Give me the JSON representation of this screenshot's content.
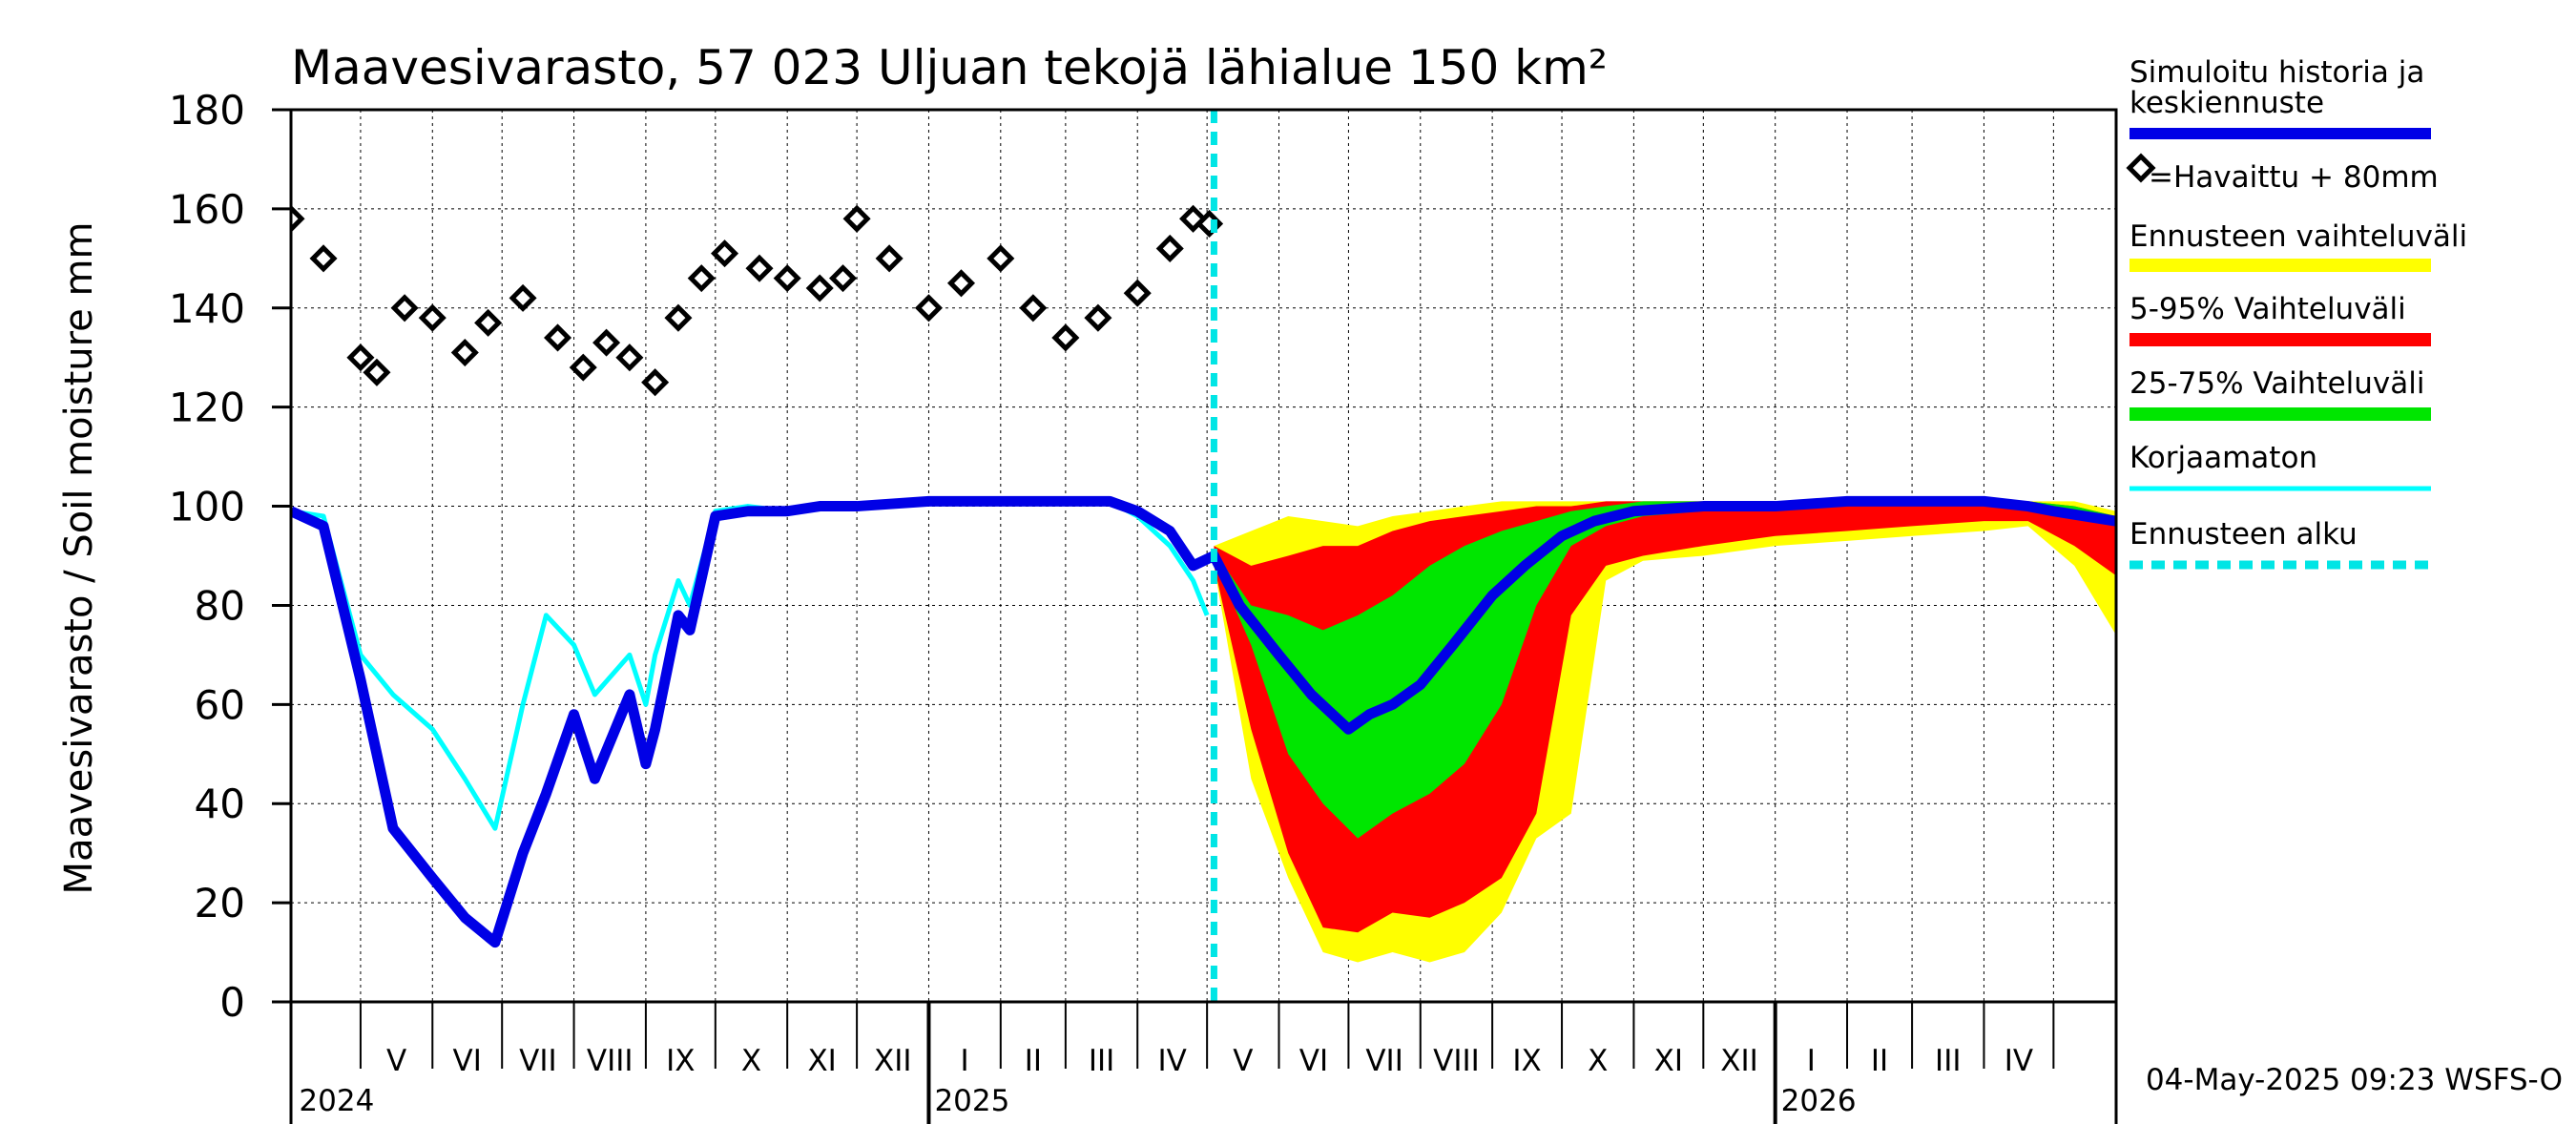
{
  "chart_data": {
    "type": "line",
    "title": "Maavesivarasto, 57 023 Uljuan tekojä lähialue 150 km²",
    "ylabel": "Maavesivarasto / Soil moisture   mm",
    "ylim": [
      0,
      180
    ],
    "yticks": [
      "0",
      "20",
      "40",
      "60",
      "80",
      "100",
      "120",
      "140",
      "160",
      "180"
    ],
    "xlim": [
      "2024-04-01",
      "2026-05-28"
    ],
    "grid": true,
    "months": [
      "V",
      "VI",
      "VII",
      "VIII",
      "IX",
      "X",
      "XI",
      "XII",
      "I",
      "II",
      "III",
      "IV",
      "V",
      "VI",
      "VII",
      "VIII",
      "IX",
      "X",
      "XI",
      "XII",
      "I",
      "II",
      "III",
      "IV"
    ],
    "years": [
      "2024",
      "2025",
      "2026"
    ],
    "forecast_start": "2025-05-04",
    "legend_position": "right",
    "legend": [
      {
        "label": "Simuloitu historia ja keskiennuste",
        "color": "#0000e6"
      },
      {
        "label": "=Havaittu + 80mm",
        "color": "#000000"
      },
      {
        "label": "Ennusteen vaihteluväli",
        "color": "#ffff00"
      },
      {
        "label": "5-95% Vaihteluväli",
        "color": "#ff0000"
      },
      {
        "label": "25-75% Vaihteluväli",
        "color": "#00e600"
      },
      {
        "label": "Korjaamaton",
        "color": "#00ffff"
      },
      {
        "label": "Ennusteen alku",
        "color": "#00e5e5"
      }
    ],
    "series": [
      {
        "name": "Simuloitu historia ja keskiennuste",
        "x": [
          "2024-04-01",
          "2024-04-15",
          "2024-05-01",
          "2024-05-15",
          "2024-06-01",
          "2024-06-15",
          "2024-06-28",
          "2024-07-10",
          "2024-07-20",
          "2024-08-01",
          "2024-08-10",
          "2024-08-25",
          "2024-09-01",
          "2024-09-05",
          "2024-09-15",
          "2024-09-20",
          "2024-10-01",
          "2024-10-15",
          "2024-11-01",
          "2024-11-15",
          "2024-12-01",
          "2025-01-01",
          "2025-02-01",
          "2025-03-01",
          "2025-03-20",
          "2025-04-01",
          "2025-04-15",
          "2025-04-25",
          "2025-05-04",
          "2025-05-15",
          "2025-06-01",
          "2025-06-15",
          "2025-07-01",
          "2025-07-10",
          "2025-07-20",
          "2025-08-01",
          "2025-08-15",
          "2025-09-01",
          "2025-09-15",
          "2025-10-01",
          "2025-10-15",
          "2025-11-01",
          "2025-12-01",
          "2026-01-01",
          "2026-02-01",
          "2026-03-01",
          "2026-04-01",
          "2026-04-20",
          "2026-05-01",
          "2026-05-28"
        ],
        "y": [
          99,
          96,
          65,
          35,
          25,
          17,
          12,
          30,
          42,
          58,
          45,
          62,
          48,
          55,
          78,
          75,
          98,
          99,
          99,
          100,
          100,
          101,
          101,
          101,
          101,
          99,
          95,
          88,
          90,
          80,
          70,
          62,
          55,
          58,
          60,
          64,
          72,
          82,
          88,
          94,
          97,
          99,
          100,
          100,
          101,
          101,
          101,
          100,
          99,
          97
        ]
      },
      {
        "name": "Korjaamaton",
        "x": [
          "2024-04-01",
          "2024-04-15",
          "2024-05-01",
          "2024-05-15",
          "2024-06-01",
          "2024-06-15",
          "2024-06-28",
          "2024-07-10",
          "2024-07-20",
          "2024-08-01",
          "2024-08-10",
          "2024-08-25",
          "2024-09-01",
          "2024-09-05",
          "2024-09-15",
          "2024-09-20",
          "2024-10-01",
          "2024-10-15",
          "2024-11-01",
          "2024-11-15",
          "2024-12-01",
          "2025-01-01",
          "2025-02-01",
          "2025-03-01",
          "2025-03-20",
          "2025-04-01",
          "2025-04-15",
          "2025-04-25",
          "2025-05-01"
        ],
        "y": [
          99,
          98,
          70,
          62,
          55,
          45,
          35,
          60,
          78,
          72,
          62,
          70,
          60,
          70,
          85,
          80,
          99,
          100,
          99,
          100,
          100,
          101,
          101,
          101,
          101,
          98,
          92,
          85,
          78
        ]
      },
      {
        "name": "=Havaittu + 80mm",
        "x": [
          "2024-04-01",
          "2024-04-15",
          "2024-05-01",
          "2024-05-08",
          "2024-05-20",
          "2024-06-01",
          "2024-06-15",
          "2024-06-25",
          "2024-07-10",
          "2024-07-25",
          "2024-08-05",
          "2024-08-15",
          "2024-08-25",
          "2024-09-05",
          "2024-09-15",
          "2024-09-25",
          "2024-10-05",
          "2024-10-20",
          "2024-11-01",
          "2024-11-15",
          "2024-11-25",
          "2024-12-01",
          "2024-12-15",
          "2025-01-01",
          "2025-01-15",
          "2025-02-01",
          "2025-02-15",
          "2025-03-01",
          "2025-03-15",
          "2025-04-01",
          "2025-04-15",
          "2025-04-25",
          "2025-05-02"
        ],
        "y": [
          158,
          150,
          130,
          127,
          140,
          138,
          131,
          137,
          142,
          134,
          128,
          133,
          130,
          125,
          138,
          146,
          151,
          148,
          146,
          144,
          146,
          158,
          150,
          140,
          145,
          150,
          140,
          134,
          138,
          143,
          152,
          158,
          157
        ]
      }
    ],
    "bands": [
      {
        "name": "Ennusteen vaihteluväli",
        "color": "#ffff00",
        "x": [
          "2025-05-04",
          "2025-05-20",
          "2025-06-05",
          "2025-06-20",
          "2025-07-05",
          "2025-07-20",
          "2025-08-05",
          "2025-08-20",
          "2025-09-05",
          "2025-09-20",
          "2025-10-05",
          "2025-10-20",
          "2025-11-05",
          "2025-12-01",
          "2026-01-01",
          "2026-02-01",
          "2026-03-01",
          "2026-04-01",
          "2026-04-20",
          "2026-05-10",
          "2026-05-28"
        ],
        "low": [
          88,
          45,
          25,
          10,
          8,
          10,
          8,
          10,
          18,
          33,
          38,
          85,
          89,
          90,
          92,
          93,
          94,
          95,
          96,
          88,
          74
        ],
        "high": [
          92,
          95,
          98,
          97,
          96,
          98,
          99,
          100,
          101,
          101,
          101,
          101,
          101,
          101,
          101,
          101,
          101,
          101,
          101,
          101,
          99
        ]
      },
      {
        "name": "5-95% Vaihteluväli",
        "color": "#ff0000",
        "x": [
          "2025-05-04",
          "2025-05-20",
          "2025-06-05",
          "2025-06-20",
          "2025-07-05",
          "2025-07-20",
          "2025-08-05",
          "2025-08-20",
          "2025-09-05",
          "2025-09-20",
          "2025-10-05",
          "2025-10-20",
          "2025-11-05",
          "2025-12-01",
          "2026-01-01",
          "2026-02-01",
          "2026-03-01",
          "2026-04-01",
          "2026-04-20",
          "2026-05-10",
          "2026-05-28"
        ],
        "low": [
          88,
          55,
          30,
          15,
          14,
          18,
          17,
          20,
          25,
          38,
          78,
          88,
          90,
          92,
          94,
          95,
          96,
          97,
          97,
          92,
          86
        ],
        "high": [
          92,
          88,
          90,
          92,
          92,
          95,
          97,
          98,
          99,
          100,
          100,
          101,
          101,
          101,
          101,
          101,
          101,
          101,
          101,
          100,
          98
        ]
      },
      {
        "name": "25-75% Vaihteluväli",
        "color": "#00e600",
        "x": [
          "2025-05-04",
          "2025-05-20",
          "2025-06-05",
          "2025-06-20",
          "2025-07-05",
          "2025-07-20",
          "2025-08-05",
          "2025-08-20",
          "2025-09-05",
          "2025-09-20",
          "2025-10-05",
          "2025-10-20",
          "2025-11-05",
          "2025-12-01",
          "2026-01-01",
          "2026-02-01",
          "2026-03-01",
          "2026-04-01",
          "2026-04-20",
          "2026-05-10",
          "2026-05-28"
        ],
        "low": [
          89,
          72,
          50,
          40,
          33,
          38,
          42,
          48,
          60,
          80,
          92,
          96,
          98,
          99,
          100,
          100,
          100,
          100,
          100,
          99,
          97
        ],
        "high": [
          91,
          80,
          78,
          75,
          78,
          82,
          88,
          92,
          95,
          97,
          99,
          100,
          101,
          101,
          101,
          101,
          101,
          101,
          101,
          100,
          98
        ]
      }
    ]
  },
  "footer": "04-May-2025 09:23 WSFS-O"
}
